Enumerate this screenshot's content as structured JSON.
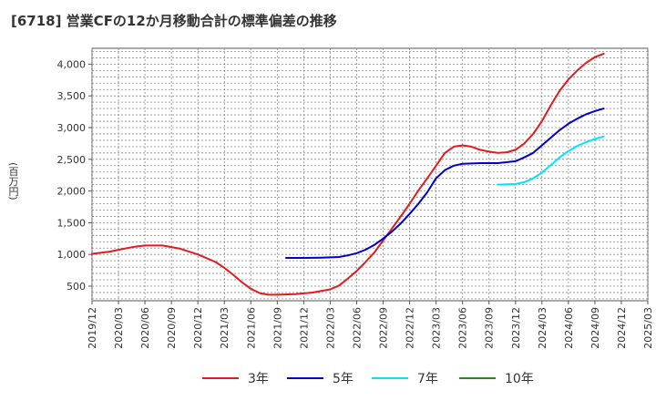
{
  "title": "[6718]  営業CFの12か月移動合計の標準偏差の推移",
  "y_unit": "(百万円)",
  "colors": {
    "3年": "#e41a1c",
    "5年": "#0000cd",
    "7年": "#00e5ff",
    "10年": "#228b22",
    "grid": "#888888",
    "plot_bg": "#ffffff"
  },
  "legend": [
    {
      "label": "3年",
      "color": "#e41a1c"
    },
    {
      "label": "5年",
      "color": "#0000cd"
    },
    {
      "label": "7年",
      "color": "#00e5ff"
    },
    {
      "label": "10年",
      "color": "#228b22"
    }
  ],
  "chart_data": {
    "type": "line",
    "title": "[6718]  営業CFの12か月移動合計の標準偏差の推移",
    "ylabel": "(百万円)",
    "xlabel": "",
    "grid": true,
    "legend_position": "bottom",
    "ylim": [
      270,
      4250
    ],
    "yticks": [
      500,
      1000,
      1500,
      2000,
      2500,
      3000,
      3500,
      4000
    ],
    "ytick_labels": [
      "500",
      "1,000",
      "1,500",
      "2,000",
      "2,500",
      "3,000",
      "3,500",
      "4,000"
    ],
    "xlim": [
      "2019/12",
      "2025/03"
    ],
    "xtick_labels": [
      "2019/12",
      "2020/03",
      "2020/06",
      "2020/09",
      "2020/12",
      "2021/03",
      "2021/06",
      "2021/09",
      "2021/12",
      "2022/03",
      "2022/06",
      "2022/09",
      "2022/12",
      "2023/03",
      "2023/06",
      "2023/09",
      "2023/12",
      "2024/03",
      "2024/06",
      "2024/09",
      "2024/12",
      "2025/03"
    ],
    "series": [
      {
        "name": "3年",
        "points": [
          [
            "2019/12",
            1010
          ],
          [
            "2020/02",
            1045
          ],
          [
            "2020/04",
            1100
          ],
          [
            "2020/05",
            1125
          ],
          [
            "2020/06",
            1140
          ],
          [
            "2020/08",
            1140
          ],
          [
            "2020/10",
            1090
          ],
          [
            "2020/12",
            1000
          ],
          [
            "2021/02",
            880
          ],
          [
            "2021/03",
            790
          ],
          [
            "2021/04",
            680
          ],
          [
            "2021/05",
            560
          ],
          [
            "2021/06",
            460
          ],
          [
            "2021/07",
            390
          ],
          [
            "2021/08",
            365
          ],
          [
            "2021/09",
            365
          ],
          [
            "2021/11",
            375
          ],
          [
            "2022/01",
            400
          ],
          [
            "2022/03",
            450
          ],
          [
            "2022/04",
            510
          ],
          [
            "2022/05",
            620
          ],
          [
            "2022/06",
            740
          ],
          [
            "2022/07",
            880
          ],
          [
            "2022/08",
            1030
          ],
          [
            "2022/09",
            1220
          ],
          [
            "2022/10",
            1410
          ],
          [
            "2022/11",
            1600
          ],
          [
            "2022/12",
            1800
          ],
          [
            "2023/01",
            2010
          ],
          [
            "2023/02",
            2200
          ],
          [
            "2023/03",
            2400
          ],
          [
            "2023/04",
            2600
          ],
          [
            "2023/05",
            2700
          ],
          [
            "2023/06",
            2720
          ],
          [
            "2023/07",
            2700
          ],
          [
            "2023/08",
            2650
          ],
          [
            "2023/09",
            2620
          ],
          [
            "2023/10",
            2600
          ],
          [
            "2023/11",
            2610
          ],
          [
            "2023/12",
            2650
          ],
          [
            "2024/01",
            2750
          ],
          [
            "2024/02",
            2900
          ],
          [
            "2024/03",
            3100
          ],
          [
            "2024/04",
            3350
          ],
          [
            "2024/05",
            3580
          ],
          [
            "2024/06",
            3760
          ],
          [
            "2024/07",
            3900
          ],
          [
            "2024/08",
            4020
          ],
          [
            "2024/09",
            4110
          ],
          [
            "2024/10",
            4165
          ]
        ]
      },
      {
        "name": "5年",
        "points": [
          [
            "2021/10",
            945
          ],
          [
            "2021/12",
            945
          ],
          [
            "2022/02",
            950
          ],
          [
            "2022/04",
            960
          ],
          [
            "2022/05",
            985
          ],
          [
            "2022/06",
            1020
          ],
          [
            "2022/07",
            1075
          ],
          [
            "2022/08",
            1150
          ],
          [
            "2022/09",
            1250
          ],
          [
            "2022/10",
            1360
          ],
          [
            "2022/11",
            1490
          ],
          [
            "2022/12",
            1640
          ],
          [
            "2023/01",
            1800
          ],
          [
            "2023/02",
            1980
          ],
          [
            "2023/03",
            2200
          ],
          [
            "2023/04",
            2330
          ],
          [
            "2023/05",
            2400
          ],
          [
            "2023/06",
            2430
          ],
          [
            "2023/08",
            2440
          ],
          [
            "2023/10",
            2440
          ],
          [
            "2023/12",
            2470
          ],
          [
            "2024/01",
            2530
          ],
          [
            "2024/02",
            2600
          ],
          [
            "2024/03",
            2720
          ],
          [
            "2024/04",
            2840
          ],
          [
            "2024/05",
            2960
          ],
          [
            "2024/06",
            3060
          ],
          [
            "2024/07",
            3140
          ],
          [
            "2024/08",
            3210
          ],
          [
            "2024/09",
            3260
          ],
          [
            "2024/10",
            3300
          ]
        ]
      },
      {
        "name": "7年",
        "points": [
          [
            "2023/10",
            2100
          ],
          [
            "2023/12",
            2110
          ],
          [
            "2024/01",
            2140
          ],
          [
            "2024/02",
            2200
          ],
          [
            "2024/03",
            2290
          ],
          [
            "2024/04",
            2410
          ],
          [
            "2024/05",
            2530
          ],
          [
            "2024/06",
            2630
          ],
          [
            "2024/07",
            2710
          ],
          [
            "2024/08",
            2770
          ],
          [
            "2024/09",
            2820
          ],
          [
            "2024/10",
            2860
          ]
        ]
      },
      {
        "name": "10年",
        "points": []
      }
    ]
  }
}
